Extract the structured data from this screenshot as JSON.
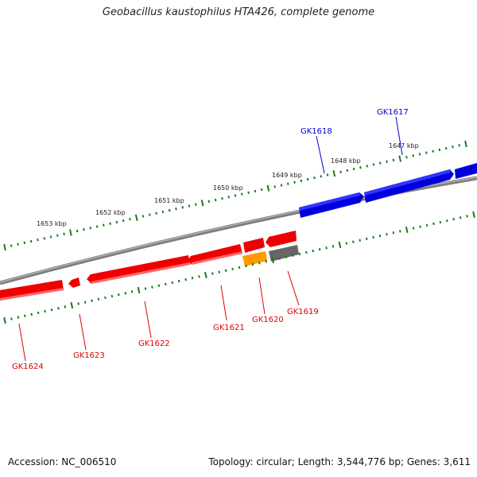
{
  "title": "Geobacillus kaustophilus HTA426, complete genome",
  "accession": "Accession: NC_006510",
  "genome_info": "Topology: circular; Length: 3,544,776 bp; Genes: 3,611",
  "colors": {
    "backbone": "#7a7a7a",
    "forward_gene": "#0000dd",
    "reverse_gene": "#ee0000",
    "orange_gene": "#ff9900",
    "gray_gene": "#666666",
    "tick": "#1a7a1a"
  },
  "scale_labels": [
    "1647 kbp",
    "1648 kbp",
    "1649 kbp",
    "1650 kbp",
    "1651 kbp",
    "1652 kbp",
    "1653 kbp"
  ],
  "genes": [
    {
      "label": "GK1617",
      "strand": "forward",
      "color": "blue"
    },
    {
      "label": "GK1618",
      "strand": "forward",
      "color": "blue"
    },
    {
      "label": "GK1619",
      "strand": "reverse",
      "color": "gray"
    },
    {
      "label": "GK1620",
      "strand": "reverse",
      "color": "orange"
    },
    {
      "label": "GK1621",
      "strand": "reverse",
      "color": "red"
    },
    {
      "label": "GK1622",
      "strand": "reverse",
      "color": "red"
    },
    {
      "label": "GK1623",
      "strand": "reverse",
      "color": "red"
    },
    {
      "label": "GK1624",
      "strand": "reverse",
      "color": "red"
    }
  ]
}
